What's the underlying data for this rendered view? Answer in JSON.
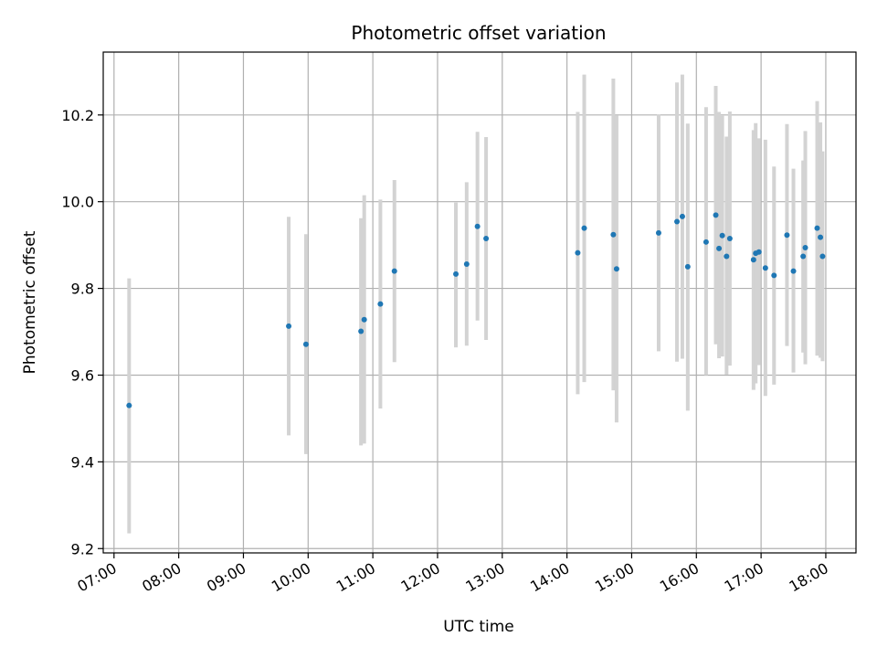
{
  "chart_data": {
    "type": "scatter",
    "title": "Photometric offset variation",
    "xlabel": "UTC time",
    "ylabel": "Photometric offset",
    "x_ticks": [
      "07:00",
      "08:00",
      "09:00",
      "10:00",
      "11:00",
      "12:00",
      "13:00",
      "14:00",
      "15:00",
      "16:00",
      "17:00",
      "18:00"
    ],
    "y_ticks": [
      "9.2",
      "9.4",
      "9.6",
      "9.8",
      "10.0",
      "10.2"
    ],
    "xlim": [
      "06:50",
      "18:28"
    ],
    "ylim": [
      9.19,
      10.345
    ],
    "grid": true,
    "colors": {
      "point": "#1f77b4",
      "errorbar": "#d3d3d3",
      "grid": "#b0b0b0"
    },
    "series": [
      {
        "points": [
          {
            "t": "07:14",
            "y": 9.53,
            "lo": 9.235,
            "hi": 9.823
          },
          {
            "t": "09:42",
            "y": 9.713,
            "lo": 9.461,
            "hi": 9.965
          },
          {
            "t": "09:58",
            "y": 9.671,
            "lo": 9.418,
            "hi": 9.925
          },
          {
            "t": "10:49",
            "y": 9.701,
            "lo": 9.438,
            "hi": 9.962
          },
          {
            "t": "10:52",
            "y": 9.728,
            "lo": 9.442,
            "hi": 10.015
          },
          {
            "t": "11:07",
            "y": 9.764,
            "lo": 9.523,
            "hi": 10.005
          },
          {
            "t": "11:20",
            "y": 9.84,
            "lo": 9.63,
            "hi": 10.05
          },
          {
            "t": "12:17",
            "y": 9.833,
            "lo": 9.664,
            "hi": 9.998
          },
          {
            "t": "12:27",
            "y": 9.856,
            "lo": 9.668,
            "hi": 10.045
          },
          {
            "t": "12:37",
            "y": 9.943,
            "lo": 9.726,
            "hi": 10.161
          },
          {
            "t": "12:45",
            "y": 9.915,
            "lo": 9.681,
            "hi": 10.149
          },
          {
            "t": "14:10",
            "y": 9.882,
            "lo": 9.556,
            "hi": 10.207
          },
          {
            "t": "14:16",
            "y": 9.939,
            "lo": 9.584,
            "hi": 10.293
          },
          {
            "t": "14:43",
            "y": 9.924,
            "lo": 9.565,
            "hi": 10.284
          },
          {
            "t": "14:46",
            "y": 9.845,
            "lo": 9.491,
            "hi": 10.199
          },
          {
            "t": "15:25",
            "y": 9.928,
            "lo": 9.655,
            "hi": 10.201
          },
          {
            "t": "15:42",
            "y": 9.954,
            "lo": 9.631,
            "hi": 10.275
          },
          {
            "t": "15:47",
            "y": 9.966,
            "lo": 9.638,
            "hi": 10.293
          },
          {
            "t": "15:52",
            "y": 9.85,
            "lo": 9.518,
            "hi": 10.18
          },
          {
            "t": "16:09",
            "y": 9.907,
            "lo": 9.6,
            "hi": 10.218
          },
          {
            "t": "16:18",
            "y": 9.969,
            "lo": 9.671,
            "hi": 10.267
          },
          {
            "t": "16:21",
            "y": 9.892,
            "lo": 9.639,
            "hi": 10.207
          },
          {
            "t": "16:24",
            "y": 9.922,
            "lo": 9.643,
            "hi": 10.198
          },
          {
            "t": "16:28",
            "y": 9.874,
            "lo": 9.601,
            "hi": 10.15
          },
          {
            "t": "16:31",
            "y": 9.915,
            "lo": 9.622,
            "hi": 10.208
          },
          {
            "t": "16:53",
            "y": 9.866,
            "lo": 9.566,
            "hi": 10.165
          },
          {
            "t": "16:55",
            "y": 9.881,
            "lo": 9.581,
            "hi": 10.181
          },
          {
            "t": "16:58",
            "y": 9.884,
            "lo": 9.623,
            "hi": 10.146
          },
          {
            "t": "17:04",
            "y": 9.847,
            "lo": 9.552,
            "hi": 10.143
          },
          {
            "t": "17:12",
            "y": 9.83,
            "lo": 9.578,
            "hi": 10.081
          },
          {
            "t": "17:24",
            "y": 9.923,
            "lo": 9.667,
            "hi": 10.179
          },
          {
            "t": "17:30",
            "y": 9.84,
            "lo": 9.606,
            "hi": 10.076
          },
          {
            "t": "17:39",
            "y": 9.874,
            "lo": 9.652,
            "hi": 10.095
          },
          {
            "t": "17:41",
            "y": 9.894,
            "lo": 9.625,
            "hi": 10.163
          },
          {
            "t": "17:52",
            "y": 9.939,
            "lo": 9.645,
            "hi": 10.232
          },
          {
            "t": "17:55",
            "y": 9.918,
            "lo": 9.64,
            "hi": 10.183
          },
          {
            "t": "17:57",
            "y": 9.874,
            "lo": 9.632,
            "hi": 10.116
          }
        ]
      }
    ]
  }
}
